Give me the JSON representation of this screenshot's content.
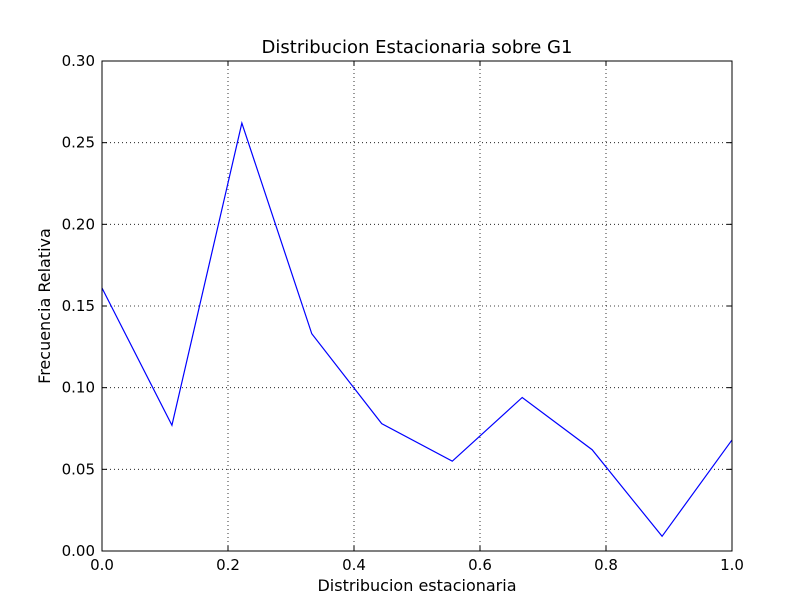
{
  "chart_data": {
    "type": "line",
    "title": "Distribucion Estacionaria sobre G1",
    "xlabel": "Distribucion estacionaria",
    "ylabel": "Frecuencia Relativa",
    "xlim": [
      0.0,
      1.0
    ],
    "ylim": [
      0.0,
      0.3
    ],
    "grid": true,
    "x_ticks": [
      0.0,
      0.2,
      0.4,
      0.6,
      0.8,
      1.0
    ],
    "x_tick_labels": [
      "0.0",
      "0.2",
      "0.4",
      "0.6",
      "0.8",
      "1.0"
    ],
    "y_ticks": [
      0.0,
      0.05,
      0.1,
      0.15,
      0.2,
      0.25,
      0.3
    ],
    "y_tick_labels": [
      "0.00",
      "0.05",
      "0.10",
      "0.15",
      "0.20",
      "0.25",
      "0.30"
    ],
    "series": [
      {
        "color": "#0000ff",
        "x": [
          0.0,
          0.111,
          0.222,
          0.333,
          0.444,
          0.556,
          0.667,
          0.778,
          0.889,
          1.0
        ],
        "y": [
          0.161,
          0.077,
          0.262,
          0.133,
          0.078,
          0.055,
          0.094,
          0.062,
          0.009,
          0.068
        ]
      }
    ]
  }
}
